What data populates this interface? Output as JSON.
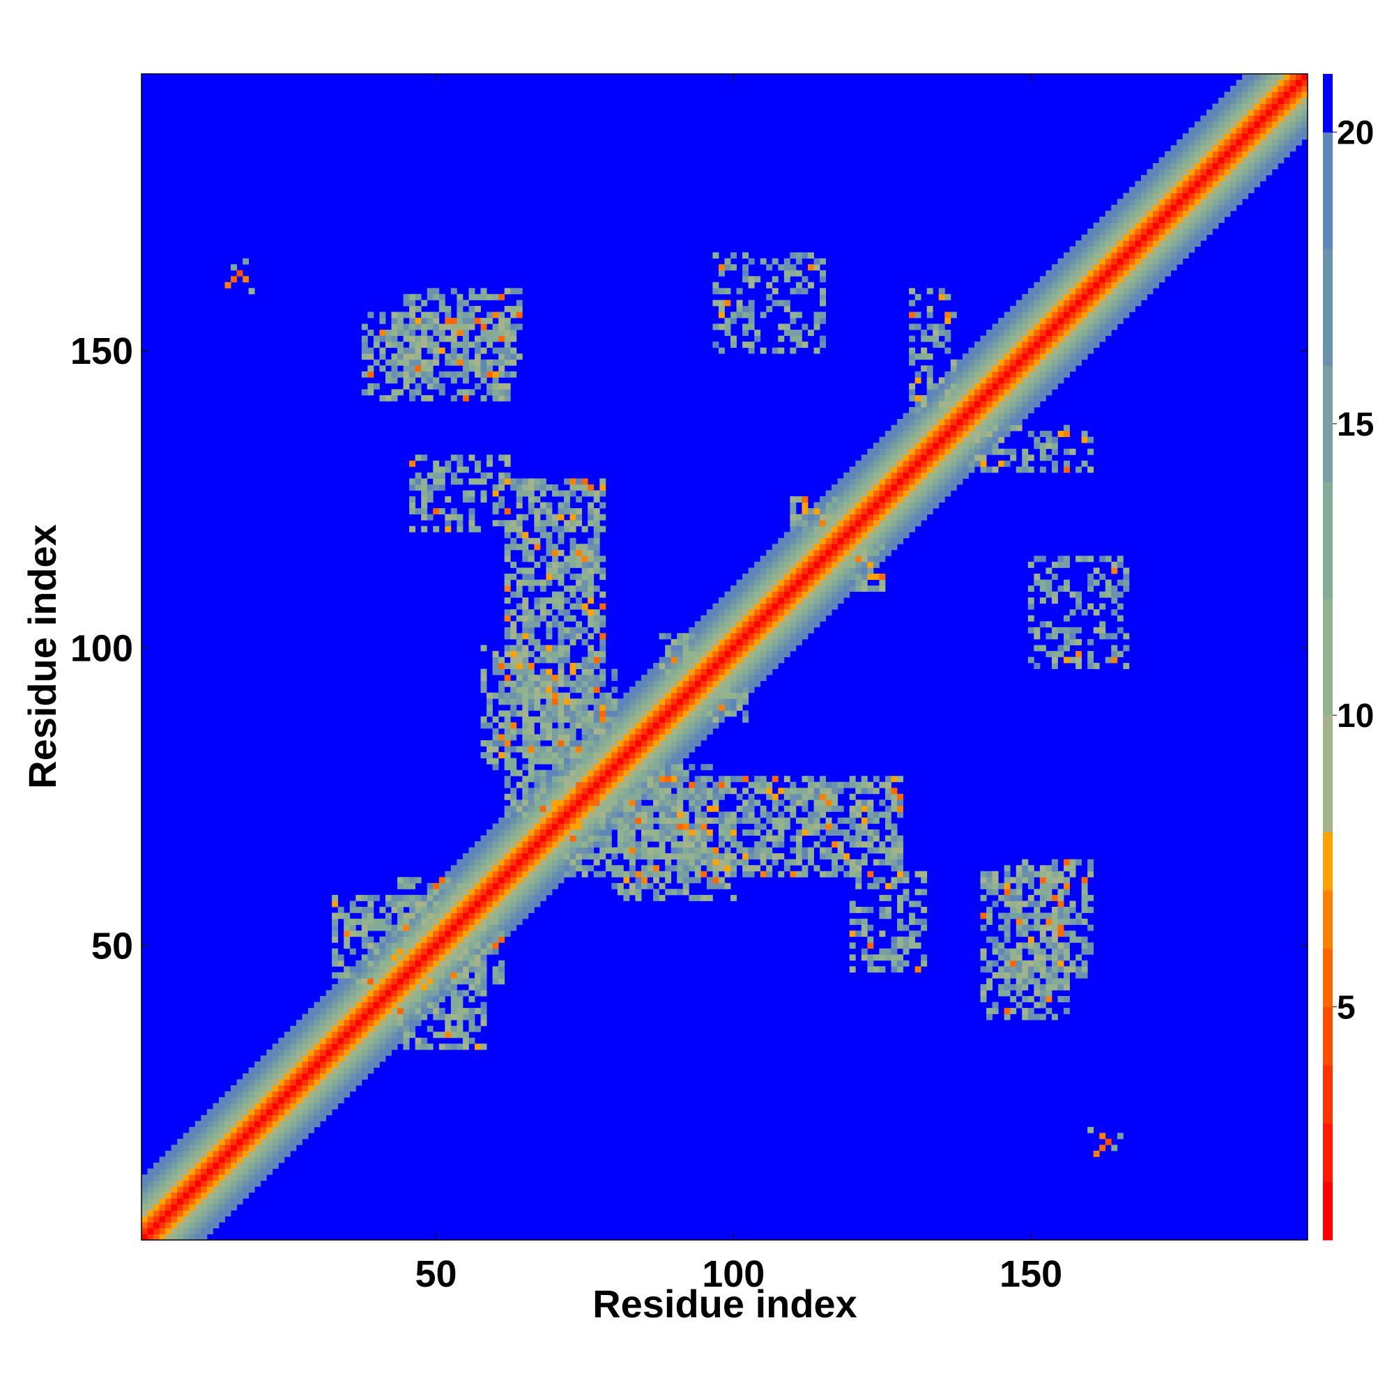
{
  "chart_data": {
    "type": "heatmap",
    "title": "",
    "xlabel": "Residue index",
    "ylabel": "Residue index",
    "n_residues": 196,
    "xlim": [
      1,
      196
    ],
    "ylim": [
      1,
      196
    ],
    "x_ticks": [
      50,
      100,
      150
    ],
    "y_ticks": [
      50,
      100,
      150
    ],
    "colorbar": {
      "ticks": [
        5,
        10,
        15,
        20
      ],
      "range": [
        1,
        21
      ],
      "levels": [
        {
          "max": 2,
          "color": "#ff0000"
        },
        {
          "max": 3,
          "color": "#ff1a00"
        },
        {
          "max": 4,
          "color": "#ff3300"
        },
        {
          "max": 5,
          "color": "#ff4d00"
        },
        {
          "max": 6,
          "color": "#ff6600"
        },
        {
          "max": 7,
          "color": "#ff8000"
        },
        {
          "max": 8,
          "color": "#ffa200"
        },
        {
          "max": 10,
          "color": "#a4b38a"
        },
        {
          "max": 12,
          "color": "#93b38f"
        },
        {
          "max": 14,
          "color": "#84aa98"
        },
        {
          "max": 16,
          "color": "#799fa2"
        },
        {
          "max": 18,
          "color": "#6c91ac"
        },
        {
          "max": 20,
          "color": "#5f86b8"
        },
        {
          "max": 21,
          "color": "#0000ff"
        }
      ]
    },
    "background_value": 21,
    "diagonal_band": [
      {
        "offset": 0,
        "value": 1
      },
      {
        "offset": 1,
        "value": 4
      },
      {
        "offset": 2,
        "value": 6
      },
      {
        "offset": 3,
        "value": 7.5
      },
      {
        "offset": 4,
        "value": 10
      },
      {
        "offset": 5,
        "value": 12
      },
      {
        "offset": 6,
        "value": 13
      },
      {
        "offset": 7,
        "value": 15
      },
      {
        "offset": 8,
        "value": 17
      },
      {
        "offset": 9,
        "value": 18.5
      },
      {
        "offset": 10,
        "value": 19.5
      }
    ],
    "contact_regions": [
      {
        "i": [
          44,
          58
        ],
        "j": [
          33,
          61
        ],
        "density": 0.55,
        "close_fraction": 0.04
      },
      {
        "i": [
          38,
          62
        ],
        "j": [
          142,
          156
        ],
        "density": 0.55,
        "close_fraction": 0.04
      },
      {
        "i": [
          62,
          78
        ],
        "j": [
          72,
          128
        ],
        "density": 0.6,
        "close_fraction": 0.06
      },
      {
        "i": [
          65,
          80
        ],
        "j": [
          81,
          96
        ],
        "density": 0.5,
        "close_fraction": 0.05
      },
      {
        "i": [
          80,
          100
        ],
        "j": [
          58,
          66
        ],
        "density": 0.5,
        "close_fraction": 0.05
      },
      {
        "i": [
          120,
          132
        ],
        "j": [
          46,
          62
        ],
        "density": 0.45,
        "close_fraction": 0.04
      },
      {
        "i": [
          130,
          137
        ],
        "j": [
          140,
          160
        ],
        "density": 0.45,
        "close_fraction": 0.05
      },
      {
        "i": [
          146,
          160
        ],
        "j": [
          45,
          64
        ],
        "density": 0.5,
        "close_fraction": 0.05
      },
      {
        "i": [
          150,
          166
        ],
        "j": [
          97,
          115
        ],
        "density": 0.35,
        "close_fraction": 0.04
      },
      {
        "i": [
          120,
          125
        ],
        "j": [
          110,
          122
        ],
        "density": 0.55,
        "close_fraction": 0.08
      },
      {
        "i": [
          92,
          102
        ],
        "j": [
          88,
          98
        ],
        "density": 0.5,
        "close_fraction": 0.05
      }
    ],
    "isolated_contacts": [
      {
        "i": 16,
        "j": 162,
        "value": 6
      },
      {
        "i": 17,
        "j": 163,
        "value": 5
      },
      {
        "i": 18,
        "j": 162,
        "value": 7
      },
      {
        "i": 15,
        "j": 161,
        "value": 7
      },
      {
        "i": 19,
        "j": 160,
        "value": 12
      },
      {
        "i": 16,
        "j": 164,
        "value": 14
      },
      {
        "i": 18,
        "j": 165,
        "value": 15
      }
    ]
  }
}
